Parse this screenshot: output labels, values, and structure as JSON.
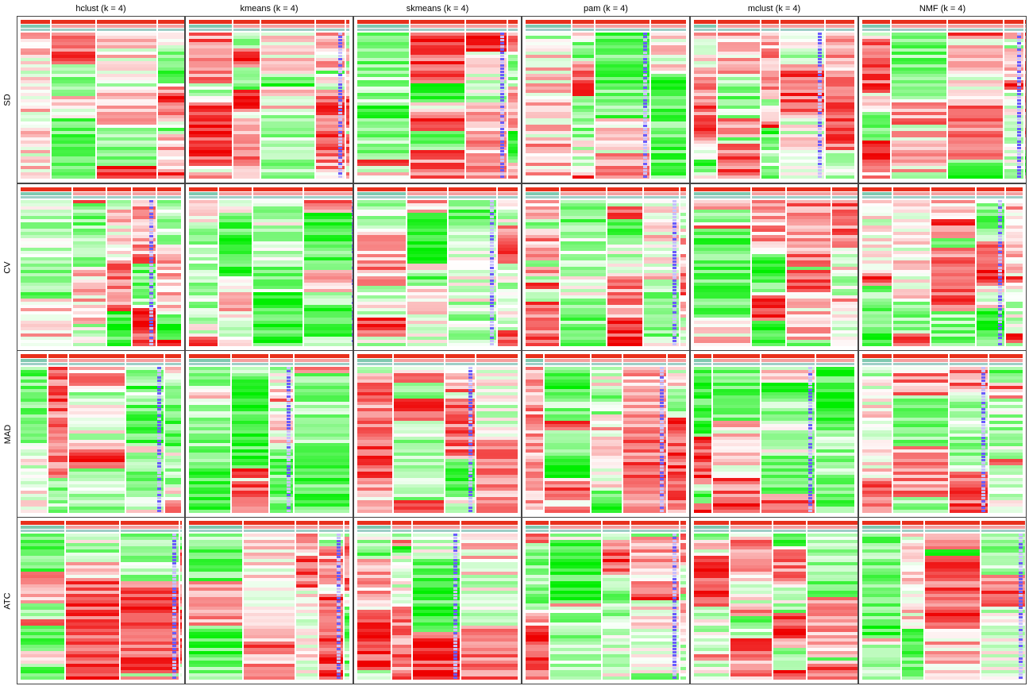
{
  "chart_data": {
    "type": "heatmap",
    "columns": [
      {
        "label": "hclust (k = 4)"
      },
      {
        "label": "kmeans (k = 4)"
      },
      {
        "label": "skmeans (k = 4)"
      },
      {
        "label": "pam (k = 4)"
      },
      {
        "label": "mclust (k = 4)"
      },
      {
        "label": "NMF (k = 4)"
      }
    ],
    "rows": [
      {
        "label": "SD"
      },
      {
        "label": "CV"
      },
      {
        "label": "MAD"
      },
      {
        "label": "ATC"
      }
    ],
    "heatmap_colors": {
      "low": "#00ee00",
      "mid": "#ffffff",
      "high": "#ee0000"
    },
    "annotation_colors": {
      "top_bar": "#e8301c",
      "class_bar": "#66c2a5",
      "silhouette": "#8070ff"
    },
    "grid": false
  }
}
